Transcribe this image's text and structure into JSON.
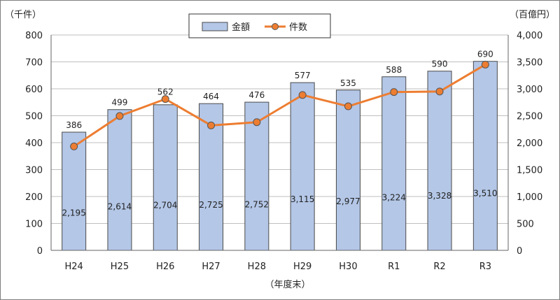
{
  "chart_data": {
    "type": "bar+line",
    "categories": [
      "H24",
      "H25",
      "H26",
      "H27",
      "H28",
      "H29",
      "H30",
      "R1",
      "R2",
      "R3"
    ],
    "series": [
      {
        "name": "金額",
        "type": "bar",
        "axis": "right",
        "values": [
          2195,
          2614,
          2704,
          2725,
          2752,
          3115,
          2977,
          3224,
          3328,
          3510
        ],
        "labels": [
          "2,195",
          "2,614",
          "2,704",
          "2,725",
          "2,752",
          "3,115",
          "2,977",
          "3,224",
          "3,328",
          "3,510"
        ],
        "color": "#b4c7e7",
        "border_color": "#4a4a4a"
      },
      {
        "name": "件数",
        "type": "line",
        "axis": "left",
        "values": [
          386,
          499,
          562,
          464,
          476,
          577,
          535,
          588,
          590,
          690
        ],
        "labels": [
          "386",
          "499",
          "562",
          "464",
          "476",
          "577",
          "535",
          "588",
          "590",
          "690"
        ],
        "color": "#ed7d31"
      }
    ],
    "left_axis": {
      "unit": "（千件）",
      "range": [
        0,
        800
      ],
      "ticks": [
        "0",
        "100",
        "200",
        "300",
        "400",
        "500",
        "600",
        "700",
        "800"
      ]
    },
    "right_axis": {
      "unit": "（百億円）",
      "range": [
        0,
        4000
      ],
      "ticks": [
        "0",
        "500",
        "1,000",
        "1,500",
        "2,000",
        "2,500",
        "3,000",
        "3,500",
        "4,000"
      ]
    },
    "xlabel": "（年度末）",
    "grid": true,
    "legend_position": "top-center"
  }
}
